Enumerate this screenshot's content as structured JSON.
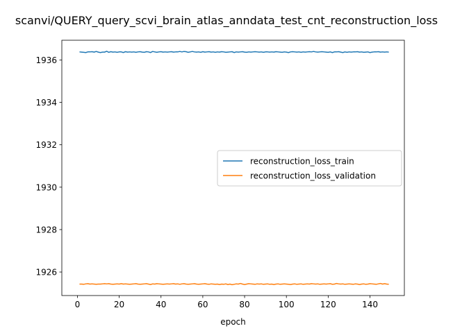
{
  "chart_data": {
    "type": "line",
    "title": "scanvi/QUERY_query_scvi_brain_atlas_anndata_test_cnt_reconstruction_loss",
    "xlabel": "epoch",
    "ylabel": "",
    "xlim": [
      -7.45,
      156.45
    ],
    "ylim": [
      1924.89,
      1936.93
    ],
    "x_ticks": [
      0,
      20,
      40,
      60,
      80,
      100,
      120,
      140
    ],
    "y_ticks": [
      1926,
      1928,
      1930,
      1932,
      1934,
      1936
    ],
    "legend_position": "center-right",
    "grid": false,
    "series": [
      {
        "name": "reconstruction_loss_train",
        "color": "#1f77b4",
        "x_start": 1,
        "x_step": 1,
        "values": [
          1936.38,
          1936.37,
          1936.36,
          1936.35,
          1936.38,
          1936.38,
          1936.39,
          1936.37,
          1936.4,
          1936.37,
          1936.35,
          1936.37,
          1936.37,
          1936.41,
          1936.36,
          1936.39,
          1936.37,
          1936.38,
          1936.36,
          1936.38,
          1936.38,
          1936.35,
          1936.39,
          1936.37,
          1936.38,
          1936.37,
          1936.38,
          1936.36,
          1936.38,
          1936.39,
          1936.37,
          1936.36,
          1936.39,
          1936.38,
          1936.35,
          1936.4,
          1936.38,
          1936.36,
          1936.38,
          1936.39,
          1936.37,
          1936.38,
          1936.37,
          1936.38,
          1936.39,
          1936.37,
          1936.38,
          1936.38,
          1936.4,
          1936.38,
          1936.4,
          1936.39,
          1936.36,
          1936.38,
          1936.4,
          1936.38,
          1936.37,
          1936.38,
          1936.36,
          1936.39,
          1936.37,
          1936.38,
          1936.39,
          1936.37,
          1936.38,
          1936.36,
          1936.38,
          1936.37,
          1936.39,
          1936.38,
          1936.36,
          1936.37,
          1936.38,
          1936.39,
          1936.35,
          1936.38,
          1936.37,
          1936.38,
          1936.39,
          1936.37,
          1936.36,
          1936.38,
          1936.37,
          1936.38,
          1936.39,
          1936.38,
          1936.37,
          1936.38,
          1936.36,
          1936.38,
          1936.38,
          1936.37,
          1936.38,
          1936.37,
          1936.39,
          1936.38,
          1936.37,
          1936.36,
          1936.38,
          1936.37,
          1936.35,
          1936.38,
          1936.39,
          1936.38,
          1936.37,
          1936.38,
          1936.36,
          1936.38,
          1936.37,
          1936.38,
          1936.39,
          1936.38,
          1936.4,
          1936.38,
          1936.37,
          1936.38,
          1936.39,
          1936.38,
          1936.37,
          1936.36,
          1936.38,
          1936.35,
          1936.38,
          1936.38,
          1936.39,
          1936.37,
          1936.35,
          1936.38,
          1936.36,
          1936.38,
          1936.37,
          1936.38,
          1936.38,
          1936.39,
          1936.37,
          1936.38,
          1936.36,
          1936.37,
          1936.38,
          1936.35,
          1936.37,
          1936.38,
          1936.38,
          1936.39,
          1936.37,
          1936.38,
          1936.37,
          1936.38,
          1936.37
        ]
      },
      {
        "name": "reconstruction_loss_validation",
        "color": "#ff7f0e",
        "x_start": 1,
        "x_step": 1,
        "values": [
          1925.43,
          1925.43,
          1925.42,
          1925.44,
          1925.45,
          1925.43,
          1925.44,
          1925.43,
          1925.42,
          1925.43,
          1925.43,
          1925.44,
          1925.45,
          1925.44,
          1925.45,
          1925.43,
          1925.42,
          1925.43,
          1925.44,
          1925.43,
          1925.45,
          1925.43,
          1925.44,
          1925.43,
          1925.42,
          1925.43,
          1925.44,
          1925.45,
          1925.43,
          1925.42,
          1925.43,
          1925.44,
          1925.45,
          1925.43,
          1925.41,
          1925.44,
          1925.43,
          1925.45,
          1925.44,
          1925.43,
          1925.42,
          1925.43,
          1925.44,
          1925.43,
          1925.44,
          1925.45,
          1925.43,
          1925.44,
          1925.42,
          1925.44,
          1925.45,
          1925.43,
          1925.42,
          1925.43,
          1925.44,
          1925.45,
          1925.43,
          1925.42,
          1925.43,
          1925.44,
          1925.45,
          1925.43,
          1925.42,
          1925.44,
          1925.43,
          1925.42,
          1925.43,
          1925.41,
          1925.43,
          1925.42,
          1925.44,
          1925.41,
          1925.43,
          1925.4,
          1925.42,
          1925.44,
          1925.43,
          1925.46,
          1925.43,
          1925.41,
          1925.43,
          1925.45,
          1925.44,
          1925.43,
          1925.42,
          1925.44,
          1925.43,
          1925.44,
          1925.42,
          1925.43,
          1925.44,
          1925.42,
          1925.43,
          1925.41,
          1925.43,
          1925.44,
          1925.42,
          1925.43,
          1925.44,
          1925.43,
          1925.42,
          1925.41,
          1925.43,
          1925.44,
          1925.42,
          1925.43,
          1925.44,
          1925.42,
          1925.43,
          1925.44,
          1925.43,
          1925.45,
          1925.44,
          1925.43,
          1925.44,
          1925.42,
          1925.43,
          1925.44,
          1925.43,
          1925.44,
          1925.45,
          1925.42,
          1925.43,
          1925.46,
          1925.44,
          1925.43,
          1925.44,
          1925.42,
          1925.43,
          1925.44,
          1925.43,
          1925.42,
          1925.44,
          1925.43,
          1925.41,
          1925.43,
          1925.44,
          1925.42,
          1925.43,
          1925.45,
          1925.44,
          1925.43,
          1925.42,
          1925.44,
          1925.46,
          1925.43,
          1925.45,
          1925.43,
          1925.42
        ]
      }
    ]
  }
}
